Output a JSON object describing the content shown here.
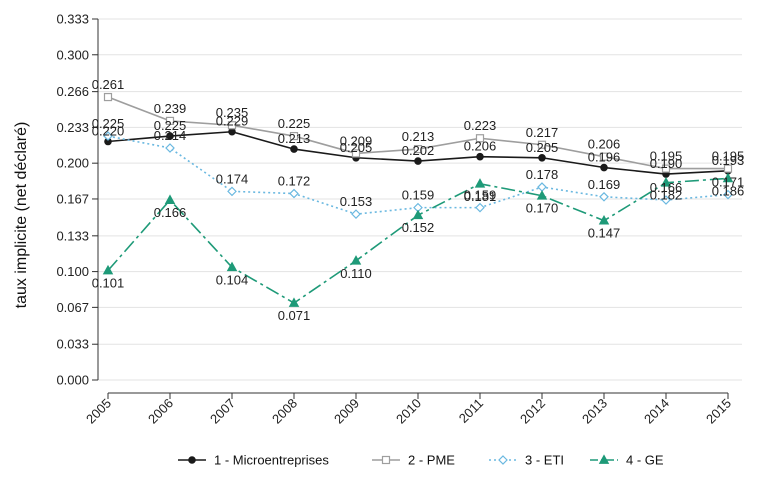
{
  "chart_data": {
    "type": "line",
    "ylabel": "taux implicite (net déclaré)",
    "xlabel": "",
    "x": [
      "2005",
      "2006",
      "2007",
      "2008",
      "2009",
      "2010",
      "2011",
      "2012",
      "2013",
      "2014",
      "2015"
    ],
    "ylim": [
      0,
      0.333
    ],
    "yticks": [
      "0.000",
      "0.033",
      "0.067",
      "0.100",
      "0.133",
      "0.167",
      "0.200",
      "0.233",
      "0.266",
      "0.300",
      "0.333"
    ],
    "grid": true,
    "legend_position": "bottom",
    "series": [
      {
        "name": "1 - Microentreprises",
        "color": "#1a1a1a",
        "marker": "circle",
        "dash": "",
        "values": [
          0.22,
          0.225,
          0.229,
          0.213,
          0.205,
          0.202,
          0.206,
          0.205,
          0.196,
          0.19,
          0.193
        ],
        "labels": [
          "0.220",
          "0.225",
          "0.229",
          "0.213",
          "0.205",
          "0.202",
          "0.206",
          "0.205",
          "0.196",
          "0.190",
          "0.193"
        ]
      },
      {
        "name": "2 - PME",
        "color": "#9e9e9e",
        "marker": "square",
        "dash": "",
        "values": [
          0.261,
          0.239,
          0.235,
          0.225,
          0.209,
          0.213,
          0.223,
          0.217,
          0.206,
          0.195,
          0.195
        ],
        "labels": [
          "0.261",
          "0.239",
          "0.235",
          "0.225",
          "0.209",
          "0.213",
          "0.223",
          "0.217",
          "0.206",
          "0.195",
          "0.195"
        ]
      },
      {
        "name": "3 - ETI",
        "color": "#6ab8e0",
        "marker": "diamond",
        "dash": "2,3",
        "values": [
          0.225,
          0.214,
          0.174,
          0.172,
          0.153,
          0.159,
          0.159,
          0.178,
          0.169,
          0.166,
          0.171
        ],
        "labels": [
          "0.225",
          "0.214",
          "0.174",
          "0.172",
          "0.153",
          "0.159",
          "0.159",
          "0.178",
          "0.169",
          "0.166",
          "0.171"
        ]
      },
      {
        "name": "4 - GE",
        "color": "#1e9a78",
        "marker": "triangle",
        "dash": "14,4,3,4",
        "values": [
          0.101,
          0.166,
          0.104,
          0.071,
          0.11,
          0.152,
          0.181,
          0.17,
          0.147,
          0.182,
          0.186
        ],
        "labels": [
          "0.101",
          "0.166",
          "0.104",
          "0.071",
          "0.110",
          "0.152",
          "0.181",
          "0.170",
          "0.147",
          "0.182",
          "0.186"
        ]
      }
    ]
  }
}
